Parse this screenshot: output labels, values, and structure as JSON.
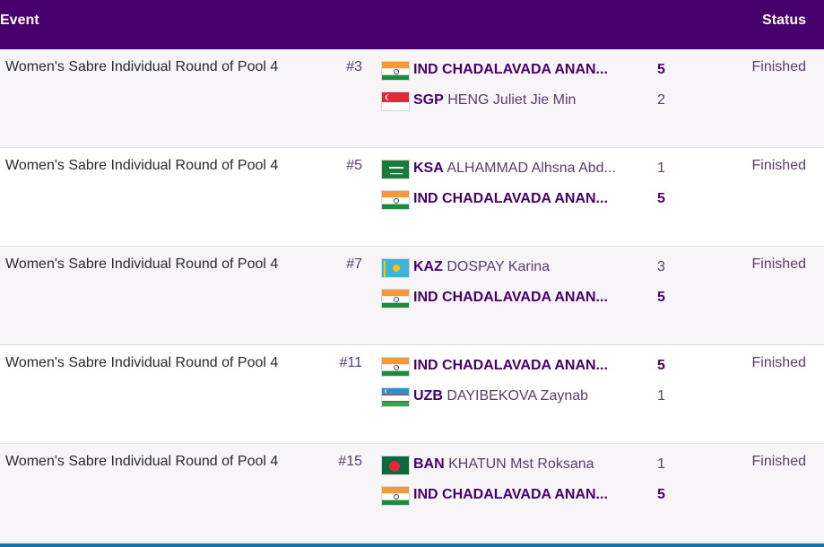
{
  "header": {
    "event_label": "Event",
    "status_label": "Status"
  },
  "colors": {
    "header_bg": "#47006b",
    "accent_text": "#47006b",
    "muted_text": "#5a3d6e"
  },
  "matches": [
    {
      "event": "Women's Sabre Individual Round of Pool 4",
      "match_no": "#3",
      "status": "Finished",
      "competitors": [
        {
          "flag": "india-flag-icon",
          "code": "IND",
          "name": "CHADALAVADA ANAN...",
          "score": "5",
          "winner": true
        },
        {
          "flag": "singapore-flag-icon",
          "code": "SGP",
          "name": "HENG Juliet Jie Min",
          "score": "2",
          "winner": false
        }
      ]
    },
    {
      "event": "Women's Sabre Individual Round of Pool 4",
      "match_no": "#5",
      "status": "Finished",
      "competitors": [
        {
          "flag": "saudi-arabia-flag-icon",
          "code": "KSA",
          "name": "ALHAMMAD Alhsna Abd...",
          "score": "1",
          "winner": false
        },
        {
          "flag": "india-flag-icon",
          "code": "IND",
          "name": "CHADALAVADA ANAN...",
          "score": "5",
          "winner": true
        }
      ]
    },
    {
      "event": "Women's Sabre Individual Round of Pool 4",
      "match_no": "#7",
      "status": "Finished",
      "competitors": [
        {
          "flag": "kazakhstan-flag-icon",
          "code": "KAZ",
          "name": "DOSPAY Karina",
          "score": "3",
          "winner": false
        },
        {
          "flag": "india-flag-icon",
          "code": "IND",
          "name": "CHADALAVADA ANAN...",
          "score": "5",
          "winner": true
        }
      ]
    },
    {
      "event": "Women's Sabre Individual Round of Pool 4",
      "match_no": "#11",
      "status": "Finished",
      "competitors": [
        {
          "flag": "india-flag-icon",
          "code": "IND",
          "name": "CHADALAVADA ANAN...",
          "score": "5",
          "winner": true
        },
        {
          "flag": "uzbekistan-flag-icon",
          "code": "UZB",
          "name": "DAYIBEKOVA Zaynab",
          "score": "1",
          "winner": false
        }
      ]
    },
    {
      "event": "Women's Sabre Individual Round of Pool 4",
      "match_no": "#15",
      "status": "Finished",
      "competitors": [
        {
          "flag": "bangladesh-flag-icon",
          "code": "BAN",
          "name": "KHATUN Mst Roksana",
          "score": "1",
          "winner": false
        },
        {
          "flag": "india-flag-icon",
          "code": "IND",
          "name": "CHADALAVADA ANAN...",
          "score": "5",
          "winner": true
        }
      ]
    }
  ]
}
